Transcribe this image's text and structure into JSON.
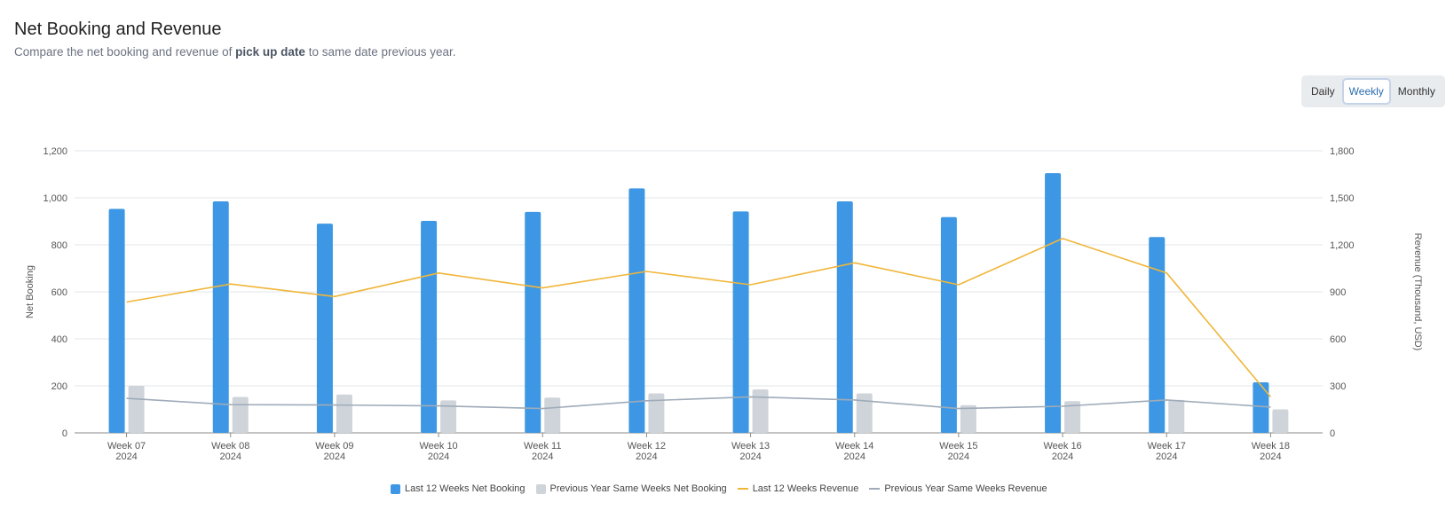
{
  "header": {
    "title": "Net Booking and Revenue",
    "subtitle_pre": "Compare the net booking and revenue of ",
    "subtitle_bold": "pick up date",
    "subtitle_post": " to same date previous year."
  },
  "period_toggle": {
    "options": [
      "Daily",
      "Weekly",
      "Monthly"
    ],
    "selected": "Weekly"
  },
  "colors": {
    "last_booking": "#3d97e4",
    "prev_booking": "#cfd4da",
    "last_revenue": "#f0b63a",
    "prev_revenue": "#9fabb9",
    "grid": "#e1e5ea",
    "axis": "#8a8a8a"
  },
  "chart_data": {
    "type": "bar",
    "categories": [
      [
        "Week 07",
        "2024"
      ],
      [
        "Week 08",
        "2024"
      ],
      [
        "Week 09",
        "2024"
      ],
      [
        "Week 10",
        "2024"
      ],
      [
        "Week 11",
        "2024"
      ],
      [
        "Week 12",
        "2024"
      ],
      [
        "Week 13",
        "2024"
      ],
      [
        "Week 14",
        "2024"
      ],
      [
        "Week 15",
        "2024"
      ],
      [
        "Week 16",
        "2024"
      ],
      [
        "Week 17",
        "2024"
      ],
      [
        "Week 18",
        "2024"
      ]
    ],
    "series": [
      {
        "name": "Last 12 Weeks Net Booking",
        "type": "bar",
        "axis": "left",
        "values": [
          953,
          985,
          890,
          902,
          940,
          1040,
          942,
          985,
          918,
          1105,
          833,
          215
        ]
      },
      {
        "name": "Previous Year Same Weeks Net Booking",
        "type": "bar",
        "axis": "left",
        "values": [
          200,
          153,
          163,
          138,
          150,
          168,
          185,
          168,
          118,
          135,
          140,
          100
        ]
      },
      {
        "name": "Last 12 Weeks Revenue",
        "type": "line",
        "axis": "right",
        "values": [
          835,
          950,
          870,
          1020,
          925,
          1030,
          945,
          1085,
          945,
          1240,
          1020,
          230
        ]
      },
      {
        "name": "Previous Year Same Weeks Revenue",
        "type": "line",
        "axis": "right",
        "values": [
          220,
          180,
          178,
          172,
          155,
          205,
          230,
          210,
          155,
          170,
          210,
          165
        ]
      }
    ],
    "ylabel": "Net Booking",
    "y2label": "Revenue (Thousand, USD)",
    "ylim": [
      0,
      1200
    ],
    "y2lim": [
      0,
      1800
    ],
    "yticks": [
      "0",
      "200",
      "400",
      "600",
      "800",
      "1,000",
      "1,200"
    ],
    "y2ticks": [
      "0",
      "300",
      "600",
      "900",
      "1,200",
      "1,500",
      "1,800"
    ],
    "grid": true,
    "legend_position": "bottom"
  }
}
